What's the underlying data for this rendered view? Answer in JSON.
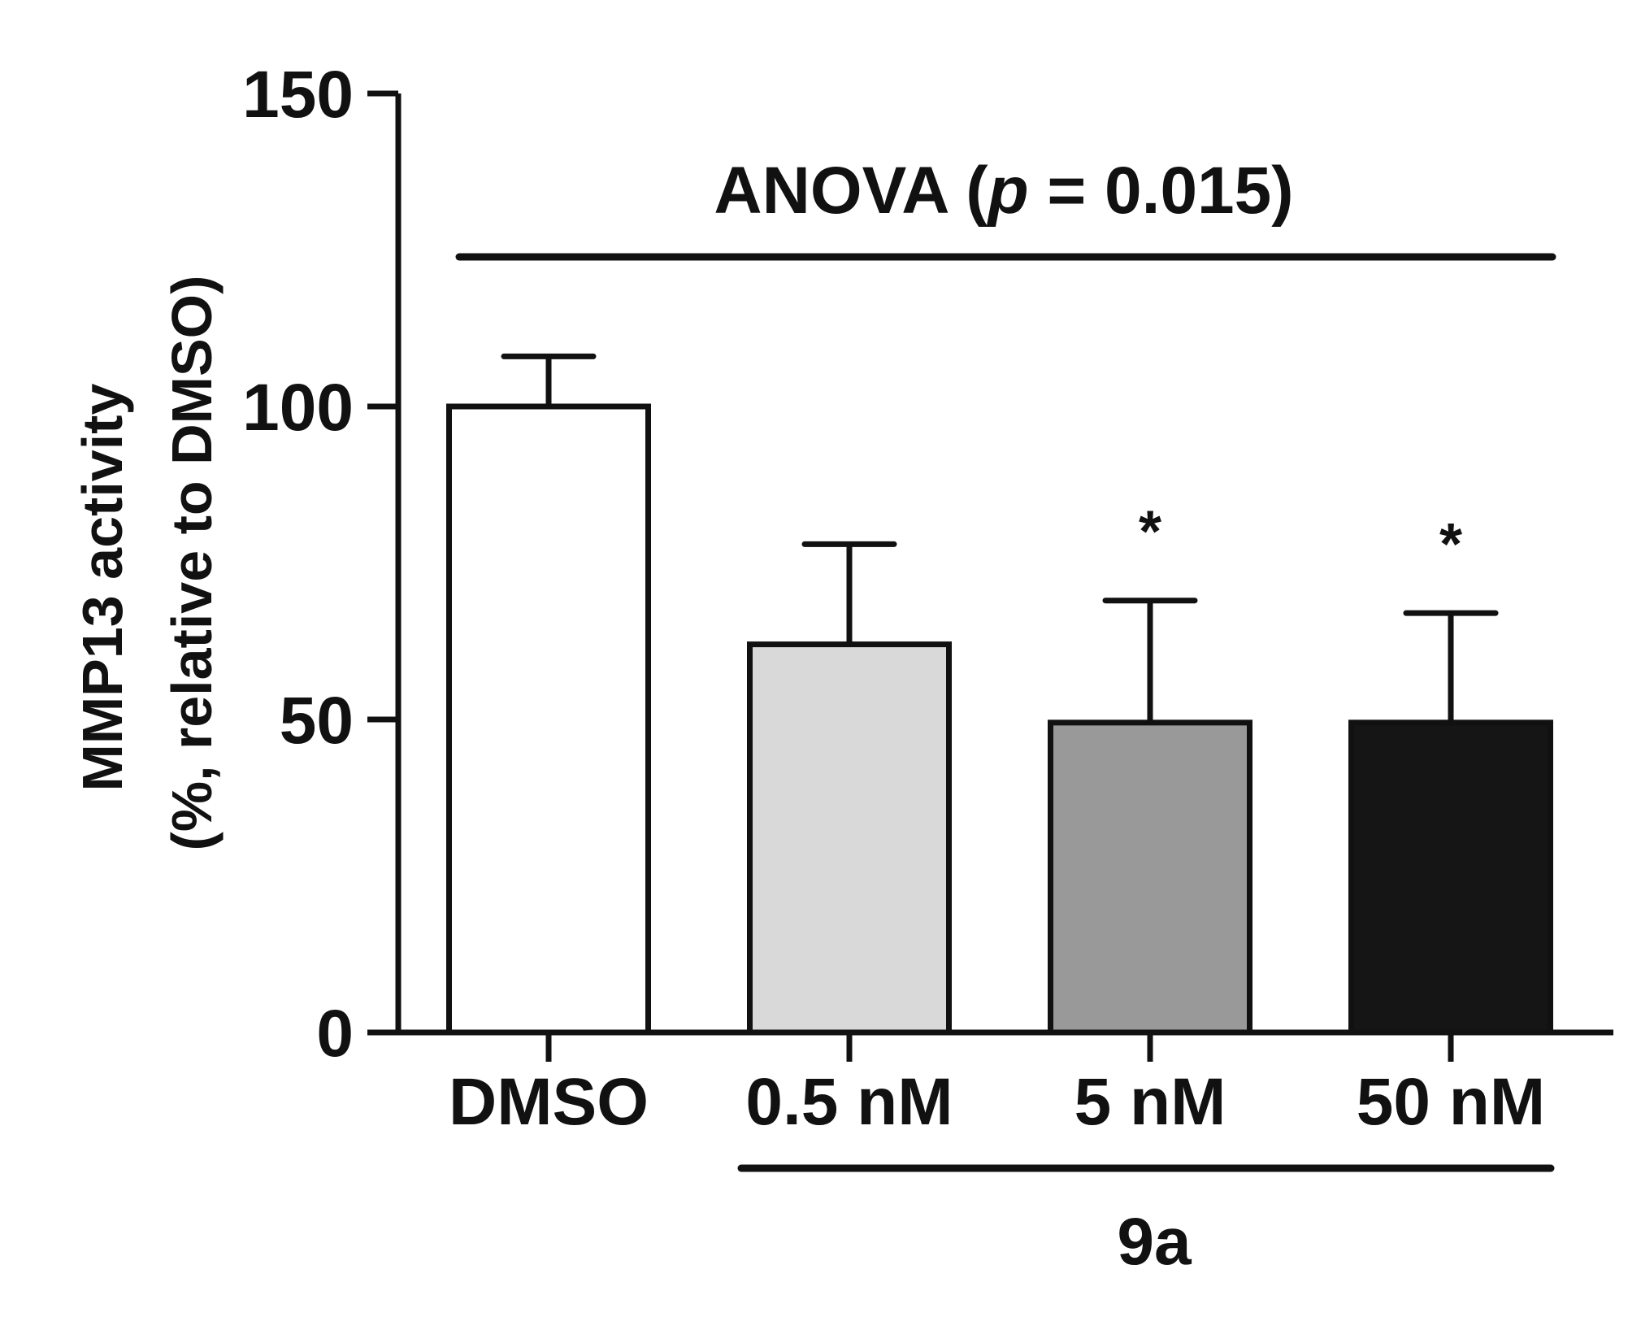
{
  "chart_data": {
    "type": "bar",
    "ylabel_line1": "MMP13 activity",
    "ylabel_line2": "(%, relative to DMSO)",
    "ylim": [
      0,
      150
    ],
    "yticks": [
      0,
      50,
      100,
      150
    ],
    "ytick_labels": [
      "0",
      "50",
      "100",
      "150"
    ],
    "categories": [
      "DMSO",
      "0.5 nM",
      "5 nM",
      "50 nM"
    ],
    "values": [
      100,
      62,
      49.5,
      49.5
    ],
    "errors": [
      8,
      16,
      19.5,
      17.5
    ],
    "bar_colors": [
      "#ffffff",
      "#d9d9d9",
      "#999999",
      "#151515"
    ],
    "significance": [
      "",
      "",
      "*",
      "*"
    ],
    "group_label": "9a",
    "anova": {
      "prefix": "ANOVA (",
      "p_symbol": "p",
      "suffix": " = 0.015)"
    }
  }
}
